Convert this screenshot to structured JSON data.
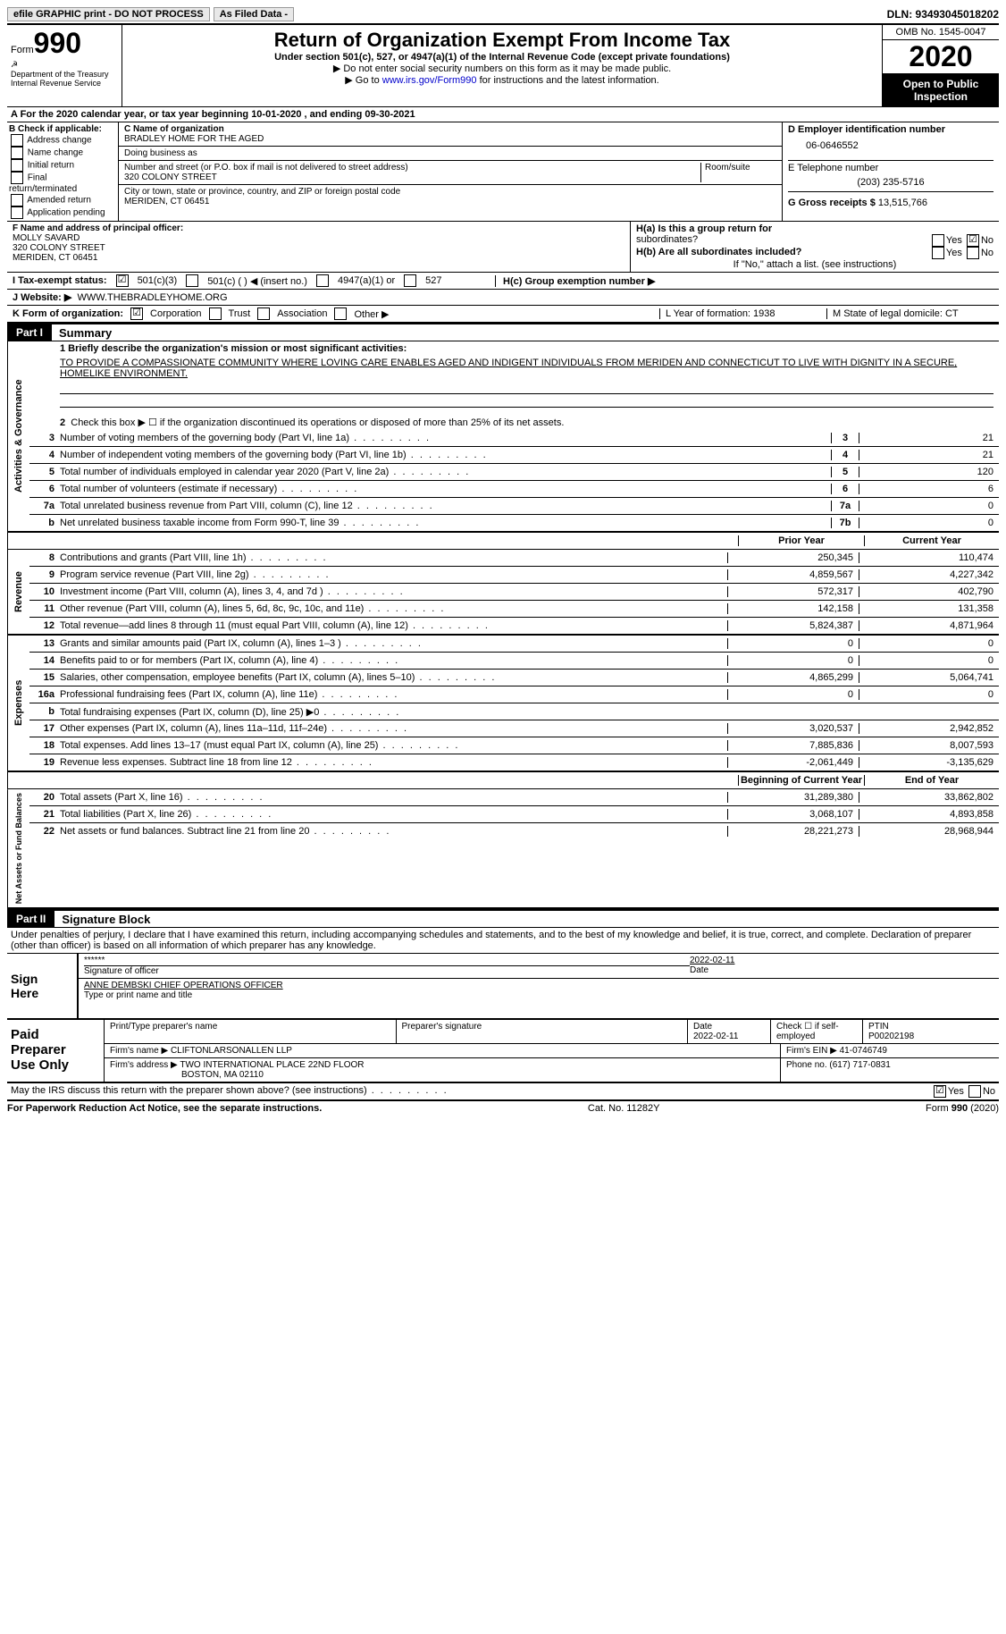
{
  "top": {
    "efile": "efile GRAPHIC print - DO NOT PROCESS",
    "asfiled": "As Filed Data -",
    "dln": "DLN: 93493045018202"
  },
  "header": {
    "form_word": "Form",
    "form_num": "990",
    "dept": "Department of the Treasury\nInternal Revenue Service",
    "title": "Return of Organization Exempt From Income Tax",
    "sub": "Under section 501(c), 527, or 4947(a)(1) of the Internal Revenue Code (except private foundations)",
    "l1": "▶ Do not enter social security numbers on this form as it may be made public.",
    "l2a": "▶ Go to ",
    "l2link": "www.irs.gov/Form990",
    "l2b": " for instructions and the latest information.",
    "omb": "OMB No. 1545-0047",
    "year": "2020",
    "open": "Open to Public Inspection"
  },
  "row_a": "A   For the 2020 calendar year, or tax year beginning 10-01-2020   , and ending 09-30-2021",
  "b": {
    "title": "B Check if applicable:",
    "opts": [
      "Address change",
      "Name change",
      "Initial return",
      "Final return/terminated",
      "Amended return",
      "Application pending"
    ]
  },
  "c": {
    "name_lbl": "C Name of organization",
    "name": "BRADLEY HOME FOR THE AGED",
    "dba": "Doing business as",
    "street_lbl": "Number and street (or P.O. box if mail is not delivered to street address)",
    "street": "320 COLONY STREET",
    "room_lbl": "Room/suite",
    "city_lbl": "City or town, state or province, country, and ZIP or foreign postal code",
    "city": "MERIDEN, CT  06451"
  },
  "d": {
    "ein_lbl": "D Employer identification number",
    "ein": "06-0646552",
    "tel_lbl": "E Telephone number",
    "tel": "(203) 235-5716",
    "gross_lbl": "G Gross receipts $",
    "gross": "13,515,766"
  },
  "f": {
    "lbl": "F  Name and address of principal officer:",
    "name": "MOLLY SAVARD",
    "addr1": "320 COLONY STREET",
    "addr2": "MERIDEN, CT  06451"
  },
  "h": {
    "a": "H(a)  Is this a group return for",
    "a2": "subordinates?",
    "b": "H(b)  Are all subordinates included?",
    "note": "If \"No,\" attach a list. (see instructions)",
    "c": "H(c)  Group exemption number ▶"
  },
  "i": {
    "lbl": "I   Tax-exempt status:",
    "o1": "501(c)(3)",
    "o2": "501(c) (   ) ◀ (insert no.)",
    "o3": "4947(a)(1) or",
    "o4": "527"
  },
  "j": {
    "lbl": "J   Website: ▶",
    "val": "WWW.THEBRADLEYHOME.ORG"
  },
  "k": {
    "lbl": "K Form of organization:",
    "o1": "Corporation",
    "o2": "Trust",
    "o3": "Association",
    "o4": "Other ▶"
  },
  "lm": {
    "l": "L Year of formation: 1938",
    "m": "M State of legal domicile: CT"
  },
  "part1": {
    "label": "Part I",
    "title": "Summary",
    "q1": "1  Briefly describe the organization's mission or most significant activities:",
    "mission": "TO PROVIDE A COMPASSIONATE COMMUNITY WHERE LOVING CARE ENABLES AGED AND INDIGENT INDIVIDUALS FROM MERIDEN AND CONNECTICUT TO LIVE WITH DIGNITY IN A SECURE, HOMELIKE ENVIRONMENT.",
    "q2": "Check this box ▶ ☐ if the organization discontinued its operations or disposed of more than 25% of its net assets.",
    "lines_gov": [
      {
        "n": "3",
        "t": "Number of voting members of the governing body (Part VI, line 1a)",
        "c": "3",
        "v": "21"
      },
      {
        "n": "4",
        "t": "Number of independent voting members of the governing body (Part VI, line 1b)",
        "c": "4",
        "v": "21"
      },
      {
        "n": "5",
        "t": "Total number of individuals employed in calendar year 2020 (Part V, line 2a)",
        "c": "5",
        "v": "120"
      },
      {
        "n": "6",
        "t": "Total number of volunteers (estimate if necessary)",
        "c": "6",
        "v": "6"
      },
      {
        "n": "7a",
        "t": "Total unrelated business revenue from Part VIII, column (C), line 12",
        "c": "7a",
        "v": "0"
      },
      {
        "n": "b",
        "t": "Net unrelated business taxable income from Form 990-T, line 39",
        "c": "7b",
        "v": "0"
      }
    ],
    "prior": "Prior Year",
    "current": "Current Year",
    "revenue": [
      {
        "n": "8",
        "t": "Contributions and grants (Part VIII, line 1h)",
        "p": "250,345",
        "c": "110,474"
      },
      {
        "n": "9",
        "t": "Program service revenue (Part VIII, line 2g)",
        "p": "4,859,567",
        "c": "4,227,342"
      },
      {
        "n": "10",
        "t": "Investment income (Part VIII, column (A), lines 3, 4, and 7d )",
        "p": "572,317",
        "c": "402,790"
      },
      {
        "n": "11",
        "t": "Other revenue (Part VIII, column (A), lines 5, 6d, 8c, 9c, 10c, and 11e)",
        "p": "142,158",
        "c": "131,358"
      },
      {
        "n": "12",
        "t": "Total revenue—add lines 8 through 11 (must equal Part VIII, column (A), line 12)",
        "p": "5,824,387",
        "c": "4,871,964"
      }
    ],
    "expenses": [
      {
        "n": "13",
        "t": "Grants and similar amounts paid (Part IX, column (A), lines 1–3 )",
        "p": "0",
        "c": "0"
      },
      {
        "n": "14",
        "t": "Benefits paid to or for members (Part IX, column (A), line 4)",
        "p": "0",
        "c": "0"
      },
      {
        "n": "15",
        "t": "Salaries, other compensation, employee benefits (Part IX, column (A), lines 5–10)",
        "p": "4,865,299",
        "c": "5,064,741"
      },
      {
        "n": "16a",
        "t": "Professional fundraising fees (Part IX, column (A), line 11e)",
        "p": "0",
        "c": "0"
      },
      {
        "n": "b",
        "t": "Total fundraising expenses (Part IX, column (D), line 25) ▶0",
        "p": "",
        "c": "",
        "gray": true
      },
      {
        "n": "17",
        "t": "Other expenses (Part IX, column (A), lines 11a–11d, 11f–24e)",
        "p": "3,020,537",
        "c": "2,942,852"
      },
      {
        "n": "18",
        "t": "Total expenses. Add lines 13–17 (must equal Part IX, column (A), line 25)",
        "p": "7,885,836",
        "c": "8,007,593"
      },
      {
        "n": "19",
        "t": "Revenue less expenses. Subtract line 18 from line 12",
        "p": "-2,061,449",
        "c": "-3,135,629"
      }
    ],
    "begin": "Beginning of Current Year",
    "end": "End of Year",
    "netassets": [
      {
        "n": "20",
        "t": "Total assets (Part X, line 16)",
        "p": "31,289,380",
        "c": "33,862,802"
      },
      {
        "n": "21",
        "t": "Total liabilities (Part X, line 26)",
        "p": "3,068,107",
        "c": "4,893,858"
      },
      {
        "n": "22",
        "t": "Net assets or fund balances. Subtract line 21 from line 20",
        "p": "28,221,273",
        "c": "28,968,944"
      }
    ]
  },
  "part2": {
    "label": "Part II",
    "title": "Signature Block",
    "perjury": "Under penalties of perjury, I declare that I have examined this return, including accompanying schedules and statements, and to the best of my knowledge and belief, it is true, correct, and complete. Declaration of preparer (other than officer) is based on all information of which preparer has any knowledge.",
    "stars": "******",
    "sig_lbl": "Signature of officer",
    "date": "2022-02-11",
    "date_lbl": "Date",
    "officer": "ANNE DEMBSKI CHIEF OPERATIONS OFFICER",
    "type_lbl": "Type or print name and title"
  },
  "paid": {
    "title": "Paid Preparer Use Only",
    "h1": "Print/Type preparer's name",
    "h2": "Preparer's signature",
    "h3": "Date",
    "h4": "Check ☐ if self-employed",
    "h5": "PTIN",
    "date": "2022-02-11",
    "ptin": "P00202198",
    "firm_lbl": "Firm's name   ▶",
    "firm": "CLIFTONLARSONALLEN LLP",
    "ein_lbl": "Firm's EIN ▶",
    "ein": "41-0746749",
    "addr_lbl": "Firm's address ▶",
    "addr": "TWO INTERNATIONAL PLACE 22ND FLOOR",
    "addr2": "BOSTON, MA  02110",
    "phone_lbl": "Phone no.",
    "phone": "(617) 717-0831"
  },
  "bottom": {
    "discuss": "May the IRS discuss this return with the preparer shown above? (see instructions)",
    "paperwork": "For Paperwork Reduction Act Notice, see the separate instructions.",
    "cat": "Cat. No. 11282Y",
    "form": "Form 990 (2020)"
  }
}
